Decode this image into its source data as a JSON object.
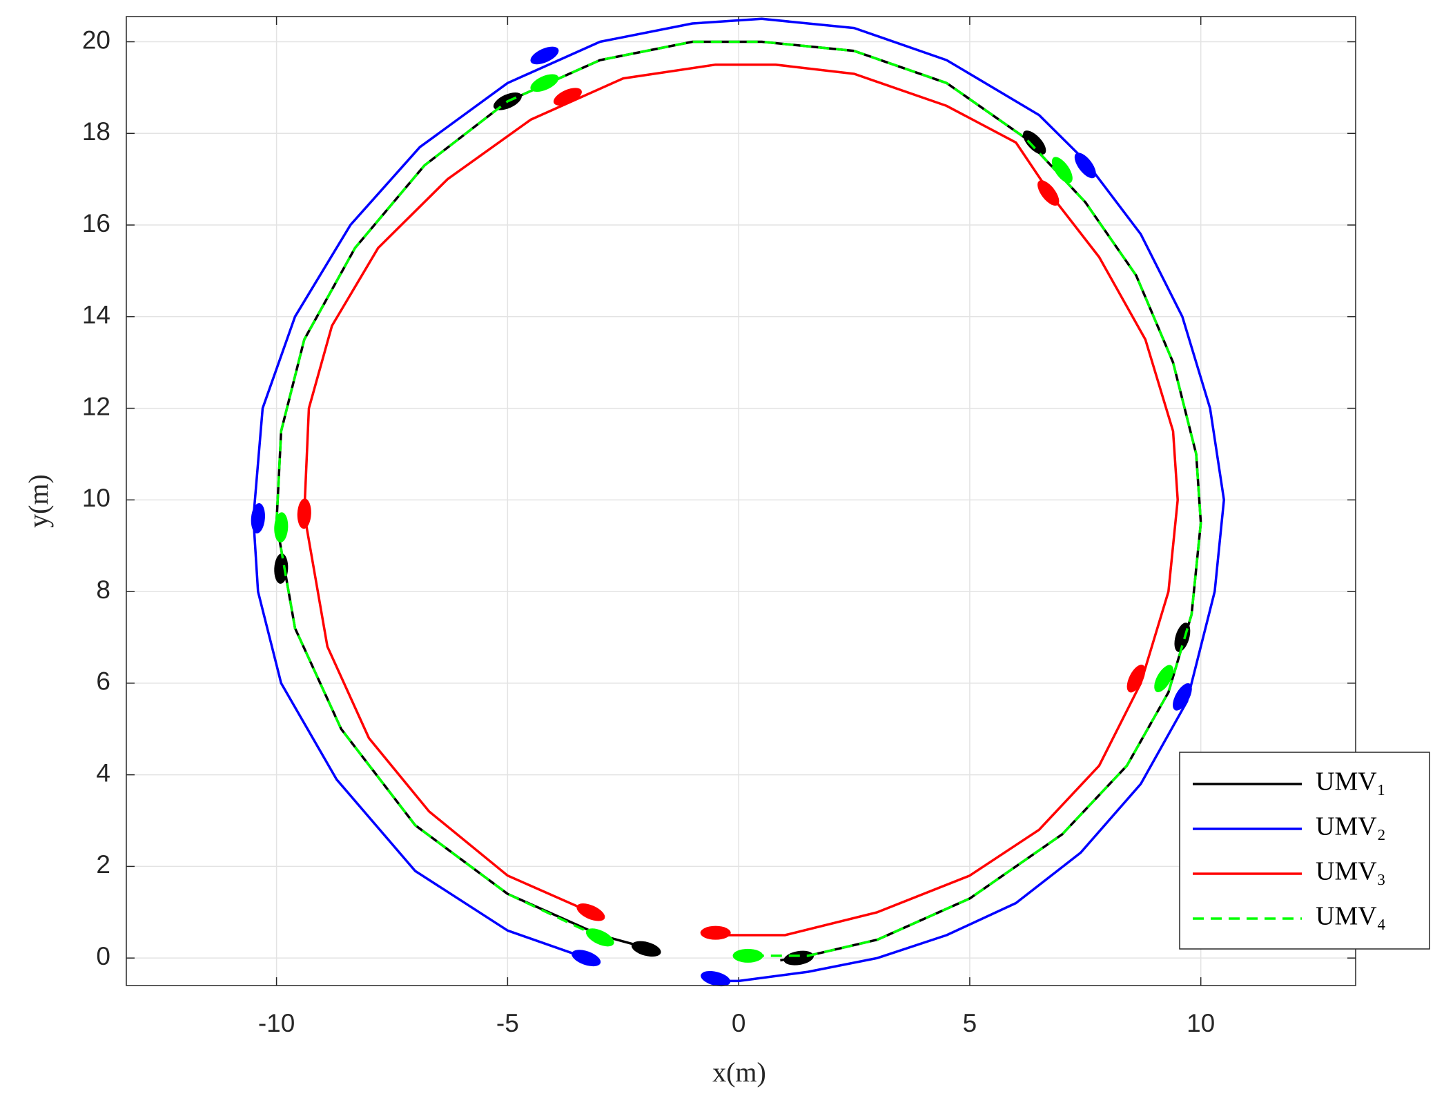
{
  "chart_data": {
    "type": "line",
    "xlabel": "x(m)",
    "ylabel": "y(m)",
    "xlim": [
      -13.25,
      13.35
    ],
    "ylim": [
      -0.6,
      20.55
    ],
    "xticks": [
      -10,
      -5,
      0,
      5,
      10
    ],
    "yticks": [
      0,
      2,
      4,
      6,
      8,
      10,
      12,
      14,
      16,
      18,
      20
    ],
    "grid": true,
    "legend": "lower right",
    "series": [
      {
        "name": "UMV₁",
        "color": "#000000",
        "dash": false,
        "x": [
          -1.9,
          -3,
          -5,
          -7,
          -8.6,
          -9.6,
          -10,
          -9.9,
          -9.4,
          -8.3,
          -6.8,
          -5,
          -3,
          -1,
          0.5,
          2.5,
          4.5,
          6.2,
          7.5,
          8.6,
          9.4,
          9.9,
          10,
          9.8,
          9.3,
          8.4,
          7,
          5,
          3,
          1.5,
          0.9
        ],
        "values": [
          0.2,
          0.5,
          1.4,
          2.9,
          5,
          7.2,
          9.5,
          11.5,
          13.5,
          15.5,
          17.3,
          18.7,
          19.6,
          20,
          20,
          19.8,
          19.1,
          17.9,
          16.5,
          14.9,
          13,
          11,
          9.5,
          7.5,
          5.8,
          4.2,
          2.7,
          1.3,
          0.4,
          0.05,
          -0.05
        ],
        "snapshot_x": [
          -2,
          -5,
          6.4,
          9.6,
          -9.9,
          1.3
        ],
        "snapshot_y": [
          0.2,
          18.7,
          17.8,
          7,
          8.5,
          0
        ]
      },
      {
        "name": "UMV₂",
        "color": "#0000ff",
        "dash": false,
        "x": [
          -3.3,
          -5,
          -7,
          -8.7,
          -9.9,
          -10.4,
          -10.5,
          -10.3,
          -9.6,
          -8.4,
          -6.9,
          -5,
          -3,
          -1,
          0.5,
          2.5,
          4.5,
          6.5,
          7.5,
          8.7,
          9.6,
          10.2,
          10.5,
          10.3,
          9.7,
          8.7,
          7.4,
          6,
          4.5,
          3,
          1.5,
          0,
          -0.3,
          -0.7
        ],
        "values": [
          0,
          0.6,
          1.9,
          3.9,
          6,
          8,
          9.6,
          12,
          14,
          16,
          17.7,
          19.1,
          20,
          20.4,
          20.5,
          20.3,
          19.6,
          18.4,
          17.4,
          15.8,
          14,
          12,
          10,
          8,
          5.6,
          3.8,
          2.3,
          1.2,
          0.5,
          0,
          -0.3,
          -0.5,
          -0.5,
          -0.4
        ],
        "snapshot_x": [
          -3.3,
          -4.2,
          7.5,
          9.6,
          -10.4,
          -0.5
        ],
        "snapshot_y": [
          0,
          19.7,
          17.3,
          5.7,
          9.6,
          -0.45
        ]
      },
      {
        "name": "UMV₃",
        "color": "#ff0000",
        "dash": false,
        "x": [
          -3.2,
          -5,
          -6.7,
          -8,
          -8.9,
          -9.4,
          -9.3,
          -8.8,
          -7.8,
          -6.3,
          -4.5,
          -2.5,
          -0.5,
          0.8,
          2.5,
          4.5,
          6,
          6.8,
          7.8,
          8.8,
          9.4,
          9.5,
          9.3,
          8.7,
          7.8,
          6.5,
          5,
          3,
          1,
          -0.6
        ],
        "values": [
          1,
          1.8,
          3.2,
          4.8,
          6.8,
          9.7,
          12,
          13.8,
          15.5,
          17,
          18.3,
          19.2,
          19.5,
          19.5,
          19.3,
          18.6,
          17.8,
          16.6,
          15.3,
          13.5,
          11.5,
          10,
          8,
          6,
          4.2,
          2.8,
          1.8,
          1,
          0.5,
          0.5
        ],
        "snapshot_x": [
          -3.2,
          -3.7,
          6.7,
          8.6,
          -9.4,
          -0.5
        ],
        "snapshot_y": [
          1,
          18.8,
          16.7,
          6.1,
          9.7,
          0.55
        ]
      },
      {
        "name": "UMV₄",
        "color": "#00ff00",
        "dash": true,
        "x": [
          -3,
          -5,
          -7,
          -8.6,
          -9.6,
          -10,
          -9.9,
          -9.4,
          -8.3,
          -6.8,
          -5,
          -3,
          -1,
          0.5,
          2.5,
          4.5,
          6.2,
          7.5,
          8.6,
          9.4,
          9.9,
          10,
          9.8,
          9.3,
          8.4,
          7,
          5,
          3,
          1.5,
          0.2
        ],
        "values": [
          0.45,
          1.4,
          2.9,
          5,
          7.2,
          9.5,
          11.5,
          13.5,
          15.5,
          17.3,
          18.7,
          19.6,
          20,
          20,
          19.8,
          19.1,
          17.9,
          16.5,
          14.9,
          13,
          11,
          9.5,
          7.5,
          5.8,
          4.2,
          2.7,
          1.3,
          0.4,
          0.05,
          0.05
        ],
        "snapshot_x": [
          -3,
          -4.2,
          7,
          9.2,
          -9.9,
          0.2
        ],
        "snapshot_y": [
          0.45,
          19.1,
          17.2,
          6.1,
          9.4,
          0.05
        ]
      }
    ]
  }
}
